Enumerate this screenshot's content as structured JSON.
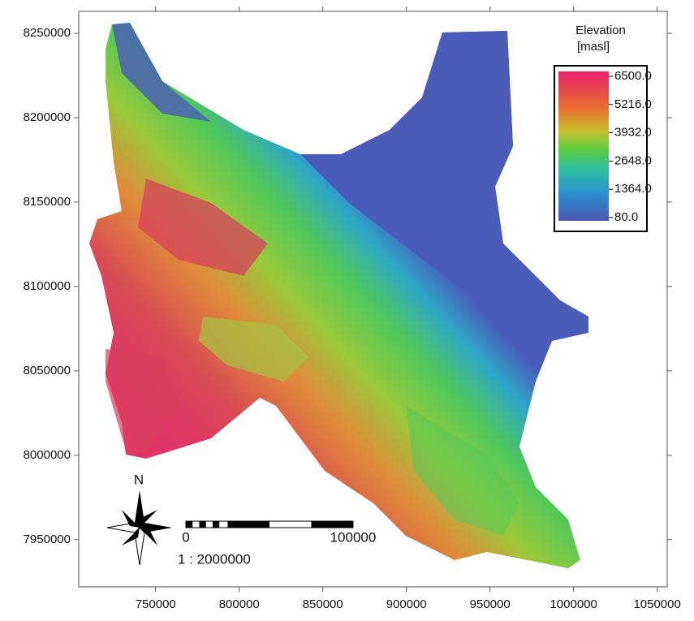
{
  "map": {
    "x_axis": {
      "lim": [
        704000,
        1056000
      ],
      "ticks": [
        750000,
        800000,
        850000,
        900000,
        950000,
        1000000,
        1050000
      ]
    },
    "y_axis": {
      "lim": [
        7922000,
        8263000
      ],
      "ticks": [
        7950000,
        8000000,
        8050000,
        8100000,
        8150000,
        8200000,
        8250000
      ]
    },
    "legend": {
      "title": "Elevation",
      "unit": "[masl]",
      "lim": [
        80,
        6500
      ],
      "ticks": [
        {
          "value": 6500,
          "label": "6500.0"
        },
        {
          "value": 5216,
          "label": "5216.0"
        },
        {
          "value": 3932,
          "label": "3932.0"
        },
        {
          "value": 2648,
          "label": "2648.0"
        },
        {
          "value": 1364,
          "label": "1364.0"
        },
        {
          "value": 80,
          "label": "80.0"
        }
      ]
    },
    "north_label": "N",
    "scale_bar": {
      "ticks": [
        0,
        100000
      ],
      "ratio": "1 : 2000000"
    }
  }
}
